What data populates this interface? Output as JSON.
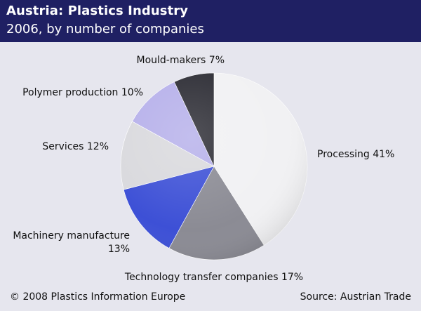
{
  "header": {
    "title": "Austria: Plastics Industry",
    "subtitle": "2006, by number of companies"
  },
  "chart_data": {
    "type": "pie",
    "start": "12 o'clock, clockwise",
    "slices": [
      {
        "label": "Processing 41%",
        "value": 41,
        "color": "#f1f1f3"
      },
      {
        "label": "Technology transfer companies 17%",
        "value": 17,
        "color": "#8b8b94"
      },
      {
        "label": "Machinery manufacture 13%",
        "value": 13,
        "color": "#3d50d6"
      },
      {
        "label": "Services 12%",
        "value": 12,
        "color": "#d9d9dd"
      },
      {
        "label": "Polymer production 10%",
        "value": 10,
        "color": "#b6b0ea"
      },
      {
        "label": "Mould-makers 7%",
        "value": 7,
        "color": "#2b2b33"
      }
    ]
  },
  "footer": {
    "copyright": "© 2008 Plastics Information Europe",
    "source": "Source: Austrian Trade"
  }
}
